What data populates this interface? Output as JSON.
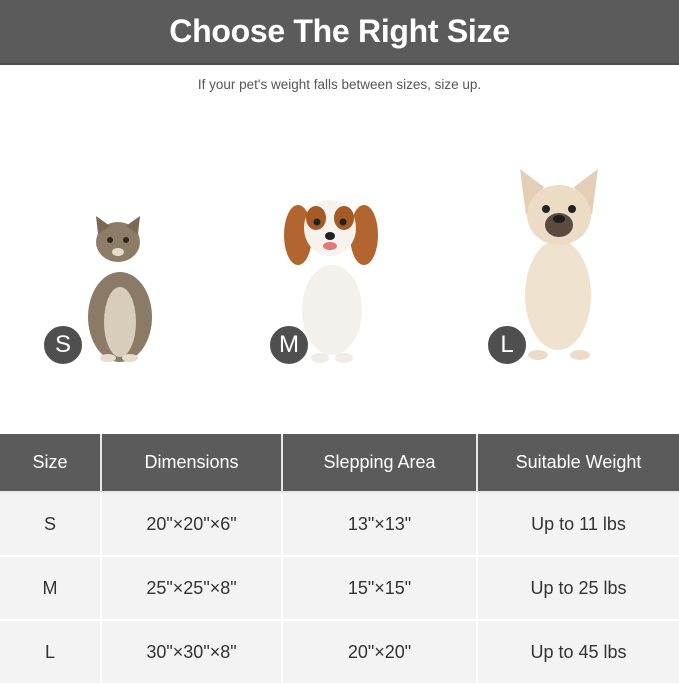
{
  "banner": {
    "title": "Choose The Right Size"
  },
  "subtitle": "If your pet's weight falls between sizes, size up.",
  "pets": [
    {
      "animal": "cat",
      "badge": "S"
    },
    {
      "animal": "dog",
      "badge": "M"
    },
    {
      "animal": "dog",
      "badge": "L"
    }
  ],
  "table": {
    "headers": [
      "Size",
      "Dimensions",
      "Slepping Area",
      "Suitable Weight"
    ],
    "rows": [
      [
        "S",
        "20\"×20\"×6\"",
        "13\"×13\"",
        "Up to 11 lbs"
      ],
      [
        "M",
        "25\"×25\"×8\"",
        "15\"×15\"",
        "Up to 25 lbs"
      ],
      [
        "L",
        "30\"×30\"×8\"",
        "20\"×20\"",
        "Up to 45 lbs"
      ]
    ]
  },
  "colors": {
    "banner": "#5b5b5b",
    "row": "#f3f3f3",
    "badge": "#4f4f4f"
  }
}
